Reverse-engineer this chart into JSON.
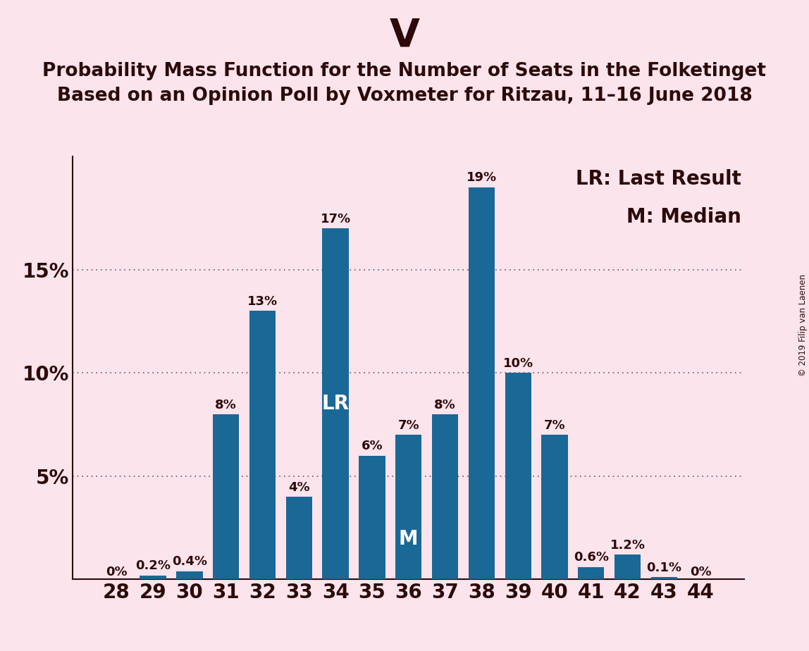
{
  "title_top": "V",
  "title_line1": "Probability Mass Function for the Number of Seats in the Folketinget",
  "title_line2": "Based on an Opinion Poll by Voxmeter for Ritzau, 11–16 June 2018",
  "seats": [
    28,
    29,
    30,
    31,
    32,
    33,
    34,
    35,
    36,
    37,
    38,
    39,
    40,
    41,
    42,
    43,
    44
  ],
  "values": [
    0.0,
    0.2,
    0.4,
    8.0,
    13.0,
    4.0,
    17.0,
    6.0,
    7.0,
    8.0,
    19.0,
    10.0,
    7.0,
    0.6,
    1.2,
    0.1,
    0.0
  ],
  "labels": [
    "0%",
    "0.2%",
    "0.4%",
    "8%",
    "13%",
    "4%",
    "17%",
    "6%",
    "7%",
    "8%",
    "19%",
    "10%",
    "7%",
    "0.6%",
    "1.2%",
    "0.1%",
    "0%"
  ],
  "bar_color": "#1a6896",
  "background_color": "#fce4ec",
  "text_color": "#2d0a0a",
  "lr_seat": 34,
  "median_seat": 36,
  "legend_lr": "LR: Last Result",
  "legend_m": "M: Median",
  "ylabel_ticks": [
    5,
    10,
    15
  ],
  "ylim": [
    0,
    20.5
  ],
  "copyright": "© 2019 Filip van Laenen",
  "title_fontsize": 40,
  "subtitle_fontsize": 19,
  "bar_label_fontsize": 13,
  "axis_label_fontsize": 20,
  "legend_fontsize": 20,
  "lr_label_fontsize": 20,
  "m_label_fontsize": 20
}
